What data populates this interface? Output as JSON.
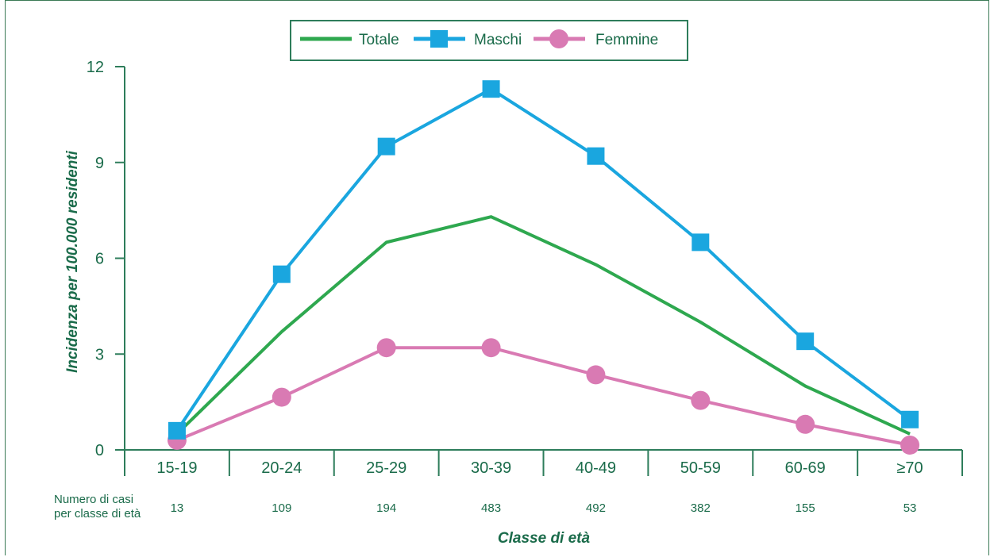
{
  "chart_data": {
    "type": "line",
    "categories": [
      "15-19",
      "20-24",
      "25-29",
      "30-39",
      "40-49",
      "50-59",
      "60-69",
      "≥70"
    ],
    "series": [
      {
        "name": "Totale",
        "color": "#2ea84f",
        "marker": "none",
        "values": [
          0.5,
          3.7,
          6.5,
          7.3,
          5.8,
          4.0,
          2.0,
          0.5
        ]
      },
      {
        "name": "Maschi",
        "color": "#1aa6df",
        "marker": "square",
        "values": [
          0.6,
          5.5,
          9.5,
          11.3,
          9.2,
          6.5,
          3.4,
          0.95
        ]
      },
      {
        "name": "Femmine",
        "color": "#d97ab3",
        "marker": "circle",
        "values": [
          0.3,
          1.65,
          3.2,
          3.2,
          2.35,
          1.55,
          0.8,
          0.15
        ]
      }
    ],
    "ylabel": "Incidenza per 100.000 residenti",
    "xlabel": "Classe di età",
    "ylim": [
      0,
      12
    ],
    "yticks": [
      "0",
      "3",
      "6",
      "9",
      "12"
    ],
    "legend_position": "top-center",
    "grid": false,
    "case_counts_label": [
      "Numero di casi",
      "per classe di età"
    ],
    "case_counts": [
      "13",
      "109",
      "194",
      "483",
      "492",
      "382",
      "155",
      "53"
    ]
  },
  "colors": {
    "axis": "#2e7d5b",
    "text": "#1a6b4a"
  }
}
